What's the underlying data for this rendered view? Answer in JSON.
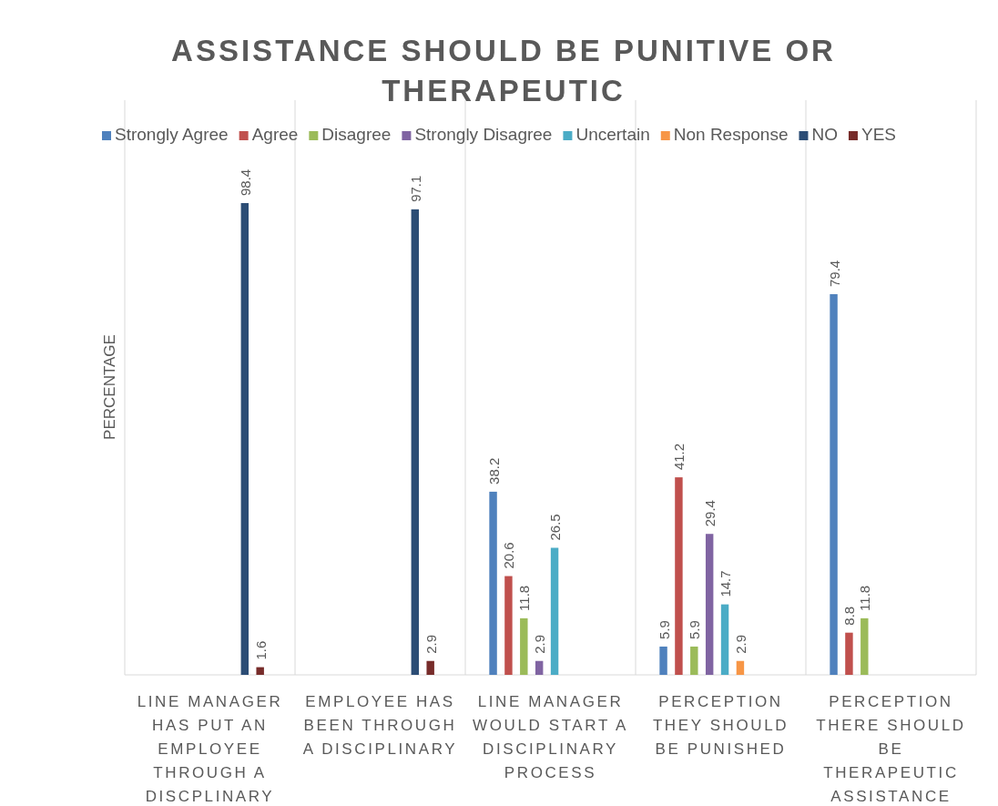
{
  "chart_data": {
    "type": "bar",
    "title": "ASSISTANCE SHOULD BE PUNITIVE OR THERAPEUTIC",
    "ylabel": "PERCENTAGE",
    "categories": [
      "LINE MANAGER HAS PUT AN EMPLOYEE THROUGH A DISCPLINARY",
      "EMPLOYEE HAS BEEN THROUGH A DISCIPLINARY",
      "LINE MANAGER WOULD START A DISCIPLINARY PROCESS",
      "PERCEPTION THEY SHOULD BE PUNISHED",
      "PERCEPTION THERE SHOULD BE THERAPEUTIC ASSISTANCE"
    ],
    "series": [
      {
        "name": "Strongly Agree",
        "color": "#4f81bd",
        "values": [
          null,
          null,
          38.2,
          5.9,
          79.4
        ]
      },
      {
        "name": "Agree",
        "color": "#c0504d",
        "values": [
          null,
          null,
          20.6,
          41.2,
          8.8
        ]
      },
      {
        "name": "Disagree",
        "color": "#9bbb59",
        "values": [
          null,
          null,
          11.8,
          5.9,
          11.8
        ]
      },
      {
        "name": "Strongly Disagree",
        "color": "#8064a2",
        "values": [
          null,
          null,
          2.9,
          29.4,
          null
        ]
      },
      {
        "name": "Uncertain",
        "color": "#4bacc6",
        "values": [
          null,
          null,
          26.5,
          14.7,
          null
        ]
      },
      {
        "name": "Non Response",
        "color": "#f79646",
        "values": [
          null,
          null,
          null,
          2.9,
          null
        ]
      },
      {
        "name": "NO",
        "color": "#2c4d75",
        "values": [
          98.4,
          97.1,
          null,
          null,
          null
        ]
      },
      {
        "name": "YES",
        "color": "#772c2a",
        "values": [
          1.6,
          2.9,
          null,
          null,
          null
        ]
      }
    ],
    "data_labels": true,
    "grid": "x",
    "legend": "top"
  }
}
